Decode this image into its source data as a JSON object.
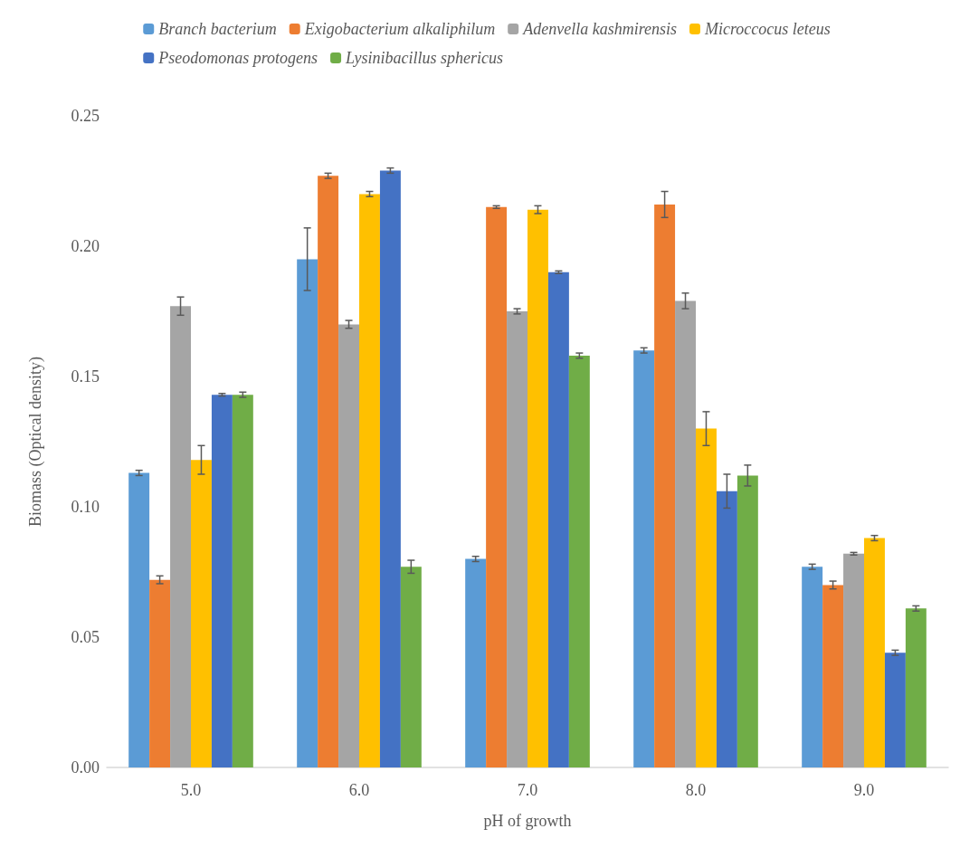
{
  "chart_data": {
    "type": "bar",
    "xlabel": "pH of growth",
    "ylabel": "Biomass (Optical density)",
    "categories": [
      "5.0",
      "6.0",
      "7.0",
      "8.0",
      "9.0"
    ],
    "series": [
      {
        "name": "Branch bacterium",
        "color": "#5b9bd5",
        "values": [
          0.113,
          0.195,
          0.08,
          0.16,
          0.077
        ],
        "errors": [
          0.001,
          0.012,
          0.001,
          0.001,
          0.001
        ]
      },
      {
        "name": "Exigobacterium alkaliphilum",
        "color": "#ed7d31",
        "values": [
          0.072,
          0.227,
          0.215,
          0.216,
          0.07
        ],
        "errors": [
          0.0015,
          0.001,
          0.0005,
          0.005,
          0.0015
        ]
      },
      {
        "name": "Adenvella kashmirensis",
        "color": "#a5a5a5",
        "values": [
          0.177,
          0.17,
          0.175,
          0.179,
          0.082
        ],
        "errors": [
          0.0035,
          0.0015,
          0.001,
          0.003,
          0.0005
        ]
      },
      {
        "name": "Microccocus leteus",
        "color": "#ffc000",
        "values": [
          0.118,
          0.22,
          0.214,
          0.13,
          0.088
        ],
        "errors": [
          0.0055,
          0.001,
          0.0015,
          0.0065,
          0.001
        ]
      },
      {
        "name": "Pseodomonas protogens",
        "color": "#4472c4",
        "values": [
          0.143,
          0.229,
          0.19,
          0.106,
          0.044
        ],
        "errors": [
          0.0005,
          0.001,
          0.0005,
          0.0065,
          0.001
        ]
      },
      {
        "name": "Lysinibacillus sphericus",
        "color": "#70ad47",
        "values": [
          0.143,
          0.077,
          0.158,
          0.112,
          0.061
        ],
        "errors": [
          0.001,
          0.0025,
          0.001,
          0.004,
          0.001
        ]
      }
    ],
    "ylim": [
      0,
      0.25
    ],
    "yticks": [
      {
        "value": 0,
        "label": "0.00"
      },
      0.05,
      {
        "value": 0.1,
        "label": "0.10"
      },
      0.15,
      {
        "value": 0.2,
        "label": "0.20"
      },
      0.25
    ],
    "grid": false,
    "legend": "top"
  }
}
